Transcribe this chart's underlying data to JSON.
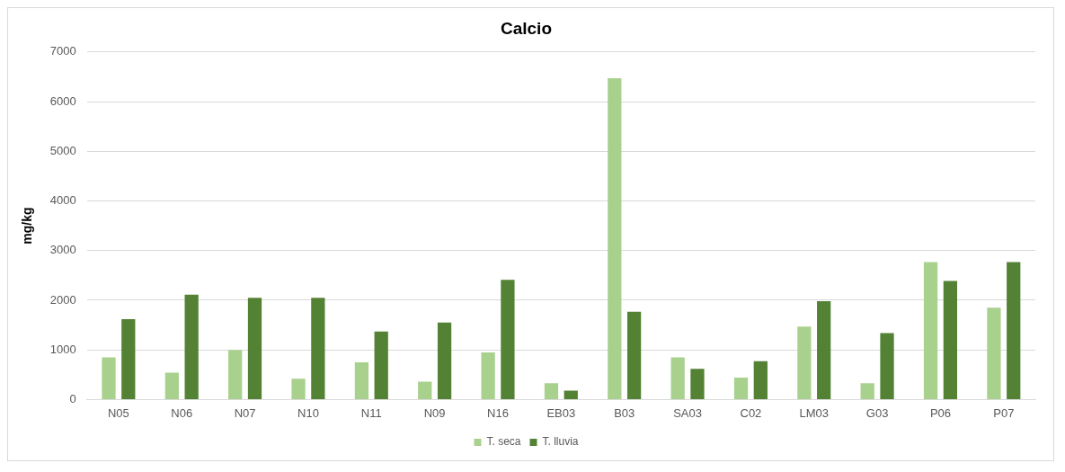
{
  "chart_data": {
    "type": "bar",
    "title": "Calcio",
    "ylabel": "mg/kg",
    "categories": [
      "N05",
      "N06",
      "N07",
      "N10",
      "N11",
      "N09",
      "N16",
      "EB03",
      "B03",
      "SA03",
      "C02",
      "LM03",
      "G03",
      "P06",
      "P07"
    ],
    "series": [
      {
        "name": "T. seca",
        "color": "#a9d18e",
        "values": [
          850,
          540,
          1000,
          420,
          750,
          360,
          950,
          330,
          6470,
          850,
          440,
          1470,
          330,
          2770,
          1850
        ]
      },
      {
        "name": "T. lluvia",
        "color": "#548235",
        "values": [
          1620,
          2110,
          2050,
          2050,
          1370,
          1550,
          2410,
          180,
          1770,
          620,
          770,
          1980,
          1340,
          2390,
          2770
        ]
      }
    ],
    "ylim": [
      0,
      7000
    ],
    "yticks": [
      0,
      1000,
      2000,
      3000,
      4000,
      5000,
      6000,
      7000
    ],
    "grid": "y",
    "legend": "bottom"
  }
}
